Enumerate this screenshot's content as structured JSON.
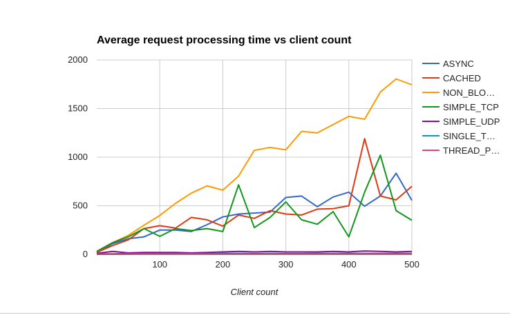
{
  "chart_data": {
    "type": "line",
    "title": "Average request processing time vs client count",
    "xlabel": "Client count",
    "ylabel": "",
    "xlim": [
      0,
      500
    ],
    "ylim": [
      0,
      2000
    ],
    "x_ticks": [
      "100",
      "200",
      "300",
      "400",
      "500"
    ],
    "y_ticks": [
      "0",
      "500",
      "1000",
      "1500",
      "2000"
    ],
    "grid": true,
    "legend_position": "right",
    "x": [
      0,
      25,
      50,
      75,
      100,
      125,
      150,
      175,
      200,
      225,
      250,
      275,
      300,
      325,
      350,
      375,
      400,
      425,
      450,
      475,
      500
    ],
    "series": [
      {
        "name": "ASYNC",
        "color": "#3366cc",
        "values": [
          20,
          110,
          160,
          180,
          250,
          250,
          235,
          305,
          385,
          415,
          425,
          435,
          585,
          600,
          490,
          590,
          640,
          495,
          600,
          835,
          555
        ]
      },
      {
        "name": "CACHED",
        "color": "#dc3912",
        "values": [
          20,
          90,
          150,
          265,
          295,
          270,
          380,
          355,
          290,
          405,
          370,
          450,
          415,
          405,
          465,
          470,
          500,
          1190,
          600,
          560,
          700
        ]
      },
      {
        "name": "NON_BLO…",
        "color": "#ff9900",
        "values": [
          30,
          120,
          195,
          300,
          400,
          525,
          630,
          705,
          660,
          805,
          1070,
          1100,
          1075,
          1265,
          1250,
          1335,
          1420,
          1390,
          1670,
          1805,
          1745
        ]
      },
      {
        "name": "SIMPLE_TCP",
        "color": "#109618",
        "values": [
          30,
          120,
          180,
          265,
          185,
          265,
          245,
          265,
          235,
          715,
          275,
          380,
          540,
          355,
          310,
          440,
          180,
          640,
          1020,
          450,
          350
        ]
      },
      {
        "name": "SIMPLE_UDP",
        "color": "#990099",
        "values": [
          10,
          30,
          15,
          20,
          20,
          20,
          15,
          20,
          25,
          30,
          25,
          30,
          25,
          25,
          25,
          30,
          25,
          35,
          30,
          25,
          30
        ]
      },
      {
        "name": "SINGLE_T…",
        "color": "#0099c6",
        "values": [
          5,
          5,
          8,
          5,
          8,
          8,
          8,
          8,
          10,
          10,
          8,
          10,
          8,
          8,
          10,
          10,
          10,
          10,
          10,
          10,
          10
        ]
      },
      {
        "name": "THREAD_P…",
        "color": "#dd4477",
        "values": [
          2,
          3,
          3,
          4,
          4,
          5,
          5,
          5,
          6,
          6,
          6,
          7,
          6,
          7,
          8,
          8,
          8,
          8,
          9,
          9,
          9
        ]
      }
    ]
  }
}
